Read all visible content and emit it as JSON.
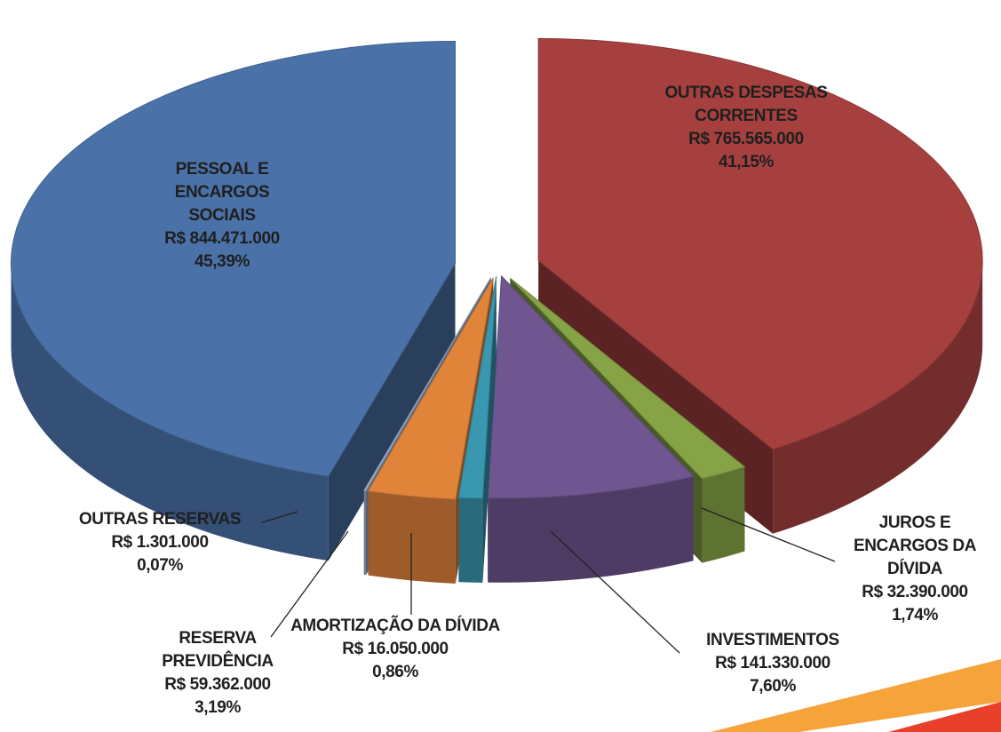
{
  "chart_data": {
    "type": "pie",
    "categories": [
      "OUTRAS DESPESAS CORRENTES",
      "JUROS E ENCARGOS DA DÍVIDA",
      "INVESTIMENTOS",
      "AMORTIZAÇÃO DA DÍVIDA",
      "RESERVA PREVIDÊNCIA",
      "OUTRAS RESERVAS",
      "PESSOAL E ENCARGOS SOCIAIS"
    ],
    "values": [
      765565000,
      32390000,
      141330000,
      16050000,
      59362000,
      1301000,
      844471000
    ],
    "value_labels": [
      "R$ 765.565.000",
      "R$ 32.390.000",
      "R$ 141.330.000",
      "R$ 16.050.000",
      "R$ 59.362.000",
      "R$ 1.301.000",
      "R$ 844.471.000"
    ],
    "percents": [
      41.15,
      1.74,
      7.6,
      0.86,
      3.19,
      0.07,
      45.39
    ],
    "percent_labels": [
      "41,15%",
      "1,74%",
      "7,60%",
      "0,86%",
      "3,19%",
      "0,07%",
      "45,39%"
    ],
    "colors": [
      "#a5403f",
      "#86a346",
      "#6f5690",
      "#3a97b0",
      "#e0843a",
      "#9fb0cf",
      "#4a72a8"
    ]
  }
}
